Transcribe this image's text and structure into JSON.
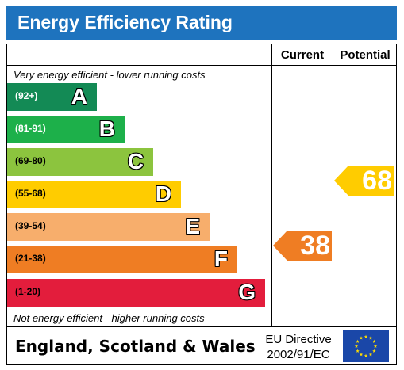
{
  "title": "Energy Efficiency Rating",
  "columns": {
    "current": "Current",
    "potential": "Potential"
  },
  "top_note": "Very energy efficient - lower running costs",
  "bottom_note": "Not energy efficient - higher running costs",
  "bands": [
    {
      "range": "(92+)",
      "letter": "A",
      "color": "#138a55",
      "range_color": "#ffffff"
    },
    {
      "range": "(81-91)",
      "letter": "B",
      "color": "#1db04a",
      "range_color": "#ffffff"
    },
    {
      "range": "(69-80)",
      "letter": "C",
      "color": "#8cc43e",
      "range_color": "#000000"
    },
    {
      "range": "(55-68)",
      "letter": "D",
      "color": "#ffcc00",
      "range_color": "#000000"
    },
    {
      "range": "(39-54)",
      "letter": "E",
      "color": "#f7ae6c",
      "range_color": "#000000"
    },
    {
      "range": "(21-38)",
      "letter": "F",
      "color": "#ef7d23",
      "range_color": "#000000"
    },
    {
      "range": "(1-20)",
      "letter": "G",
      "color": "#e31d3c",
      "range_color": "#000000"
    }
  ],
  "current": {
    "value": "38",
    "color": "#ef7d23",
    "band": "F"
  },
  "potential": {
    "value": "68",
    "color": "#ffcc00",
    "band": "D"
  },
  "footer": {
    "region": "England, Scotland & Wales",
    "directive_line1": "EU Directive",
    "directive_line2": "2002/91/EC"
  },
  "flag_color": "#1a47a8",
  "star_color": "#ffdd00"
}
